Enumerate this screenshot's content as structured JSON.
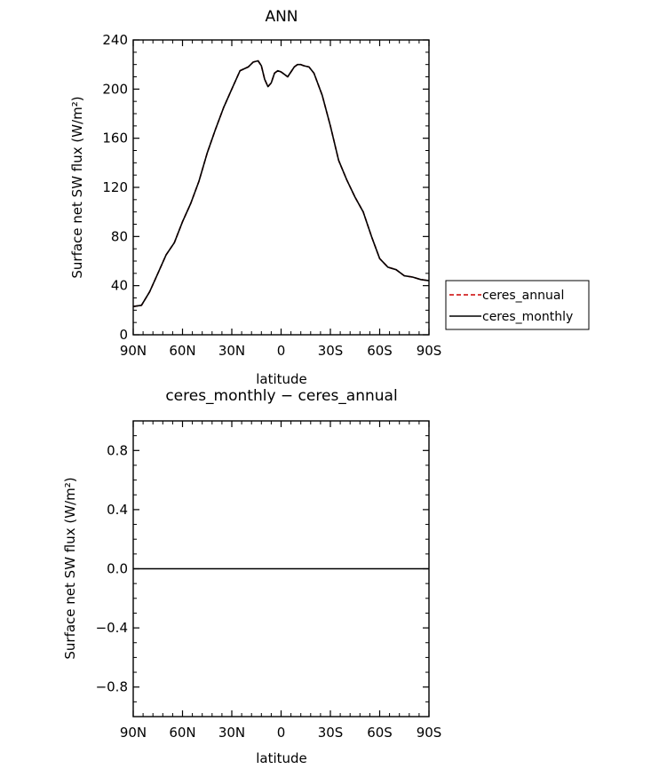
{
  "chart_data": [
    {
      "type": "line",
      "title": "ANN",
      "xlabel": "latitude",
      "ylabel": "Surface net SW flux (W/m²)",
      "xlim": [
        -90,
        90
      ],
      "ylim": [
        0,
        240
      ],
      "x_direction": "north-to-south",
      "xticks": [
        {
          "value": -90,
          "label": "90N"
        },
        {
          "value": -60,
          "label": "60N"
        },
        {
          "value": -30,
          "label": "30N"
        },
        {
          "value": 0,
          "label": "0"
        },
        {
          "value": 30,
          "label": "30S"
        },
        {
          "value": 60,
          "label": "60S"
        },
        {
          "value": 90,
          "label": "90S"
        }
      ],
      "yticks": [
        {
          "value": 0,
          "label": "0"
        },
        {
          "value": 40,
          "label": "40"
        },
        {
          "value": 80,
          "label": "80"
        },
        {
          "value": 120,
          "label": "120"
        },
        {
          "value": 160,
          "label": "160"
        },
        {
          "value": 200,
          "label": "200"
        },
        {
          "value": 240,
          "label": "240"
        }
      ],
      "x": [
        -90,
        -85,
        -80,
        -75,
        -70,
        -65,
        -60,
        -55,
        -50,
        -45,
        -40,
        -35,
        -30,
        -25,
        -20,
        -17,
        -14,
        -12,
        -10,
        -8,
        -6,
        -4,
        -2,
        0,
        2,
        4,
        6,
        8,
        10,
        12,
        14,
        17,
        20,
        25,
        30,
        35,
        40,
        45,
        50,
        55,
        60,
        65,
        70,
        75,
        80,
        85,
        90
      ],
      "series": [
        {
          "name": "ceres_annual",
          "color": "#cc0000",
          "dash": "dashed",
          "values": [
            23,
            24,
            35,
            50,
            65,
            75,
            92,
            107,
            125,
            148,
            167,
            185,
            200,
            215,
            218,
            222,
            223,
            219,
            208,
            202,
            205,
            213,
            215,
            214,
            212,
            210,
            214,
            218,
            220,
            220,
            219,
            218,
            213,
            195,
            170,
            142,
            126,
            112,
            100,
            80,
            62,
            55,
            53,
            48,
            47,
            45,
            44
          ]
        },
        {
          "name": "ceres_monthly",
          "color": "#000000",
          "dash": "solid",
          "values": [
            23,
            24,
            35,
            50,
            65,
            75,
            92,
            107,
            125,
            148,
            167,
            185,
            200,
            215,
            218,
            222,
            223,
            219,
            208,
            202,
            205,
            213,
            215,
            214,
            212,
            210,
            214,
            218,
            220,
            220,
            219,
            218,
            213,
            195,
            170,
            142,
            126,
            112,
            100,
            80,
            62,
            55,
            53,
            48,
            47,
            45,
            44
          ]
        }
      ],
      "legend": "right"
    },
    {
      "type": "line",
      "title": "ceres_monthly − ceres_annual",
      "xlabel": "latitude",
      "ylabel": "Surface net SW flux (W/m²)",
      "xlim": [
        -90,
        90
      ],
      "ylim": [
        -1,
        1
      ],
      "xticks": [
        {
          "value": -90,
          "label": "90N"
        },
        {
          "value": -60,
          "label": "60N"
        },
        {
          "value": -30,
          "label": "30N"
        },
        {
          "value": 0,
          "label": "0"
        },
        {
          "value": 30,
          "label": "30S"
        },
        {
          "value": 60,
          "label": "60S"
        },
        {
          "value": 90,
          "label": "90S"
        }
      ],
      "yticks": [
        {
          "value": -0.8,
          "label": "−0.8"
        },
        {
          "value": -0.4,
          "label": "−0.4"
        },
        {
          "value": 0.0,
          "label": "0.0"
        },
        {
          "value": 0.4,
          "label": "0.4"
        },
        {
          "value": 0.8,
          "label": "0.8"
        }
      ],
      "x": [
        -90,
        90
      ],
      "series": [
        {
          "color": "#000000",
          "dash": "solid",
          "values": [
            0,
            0
          ]
        }
      ]
    }
  ]
}
